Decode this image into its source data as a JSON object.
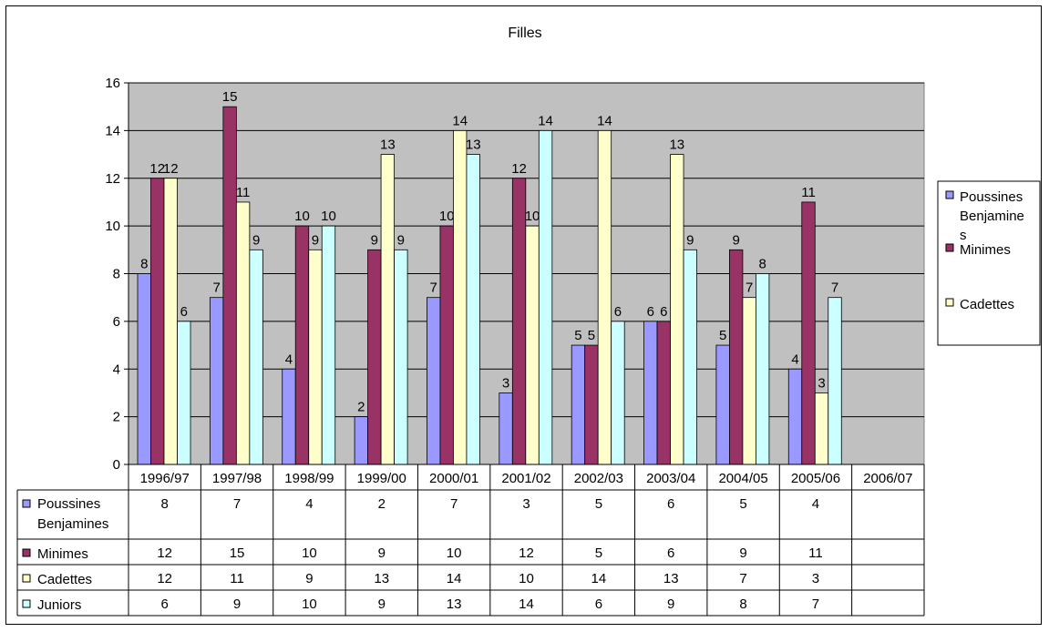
{
  "chart_data": {
    "type": "bar",
    "title": "Filles",
    "xlabel": "",
    "ylabel": "",
    "ylim": [
      0,
      16
    ],
    "yticks": [
      0,
      2,
      4,
      6,
      8,
      10,
      12,
      14,
      16
    ],
    "grid": true,
    "legend_position": "right",
    "categories": [
      "1996/97",
      "1997/98",
      "1998/99",
      "1999/00",
      "2000/01",
      "2001/02",
      "2002/03",
      "2003/04",
      "2004/05",
      "2005/06",
      "2006/07"
    ],
    "series": [
      {
        "name": "Poussines Benjamines",
        "legend_label": "Poussines Benjamine s",
        "color": "#9999FF",
        "values": [
          8,
          7,
          4,
          2,
          7,
          3,
          5,
          6,
          5,
          4,
          null
        ]
      },
      {
        "name": "Minimes",
        "legend_label": "Minimes",
        "color": "#993366",
        "values": [
          12,
          15,
          10,
          9,
          10,
          12,
          5,
          6,
          9,
          11,
          null
        ]
      },
      {
        "name": "Cadettes",
        "legend_label": "Cadettes",
        "color": "#FFFFCC",
        "values": [
          12,
          11,
          9,
          13,
          14,
          10,
          14,
          13,
          7,
          3,
          null
        ]
      },
      {
        "name": "Juniors",
        "legend_label": "",
        "color": "#CCFFFF",
        "values": [
          6,
          9,
          10,
          9,
          13,
          14,
          6,
          9,
          8,
          7,
          null
        ]
      }
    ]
  }
}
